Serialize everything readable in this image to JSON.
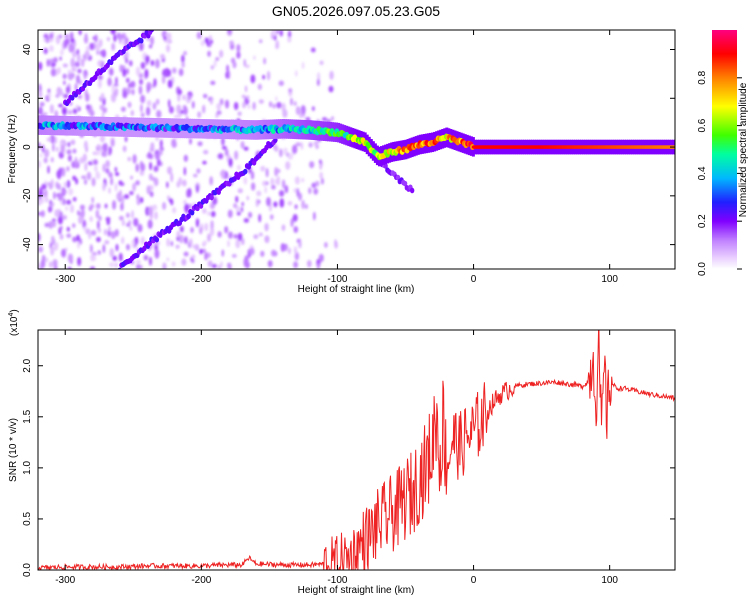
{
  "title": "GN05.2026.097.05.23.G05",
  "chart_data": [
    {
      "type": "heatmap",
      "xlabel": "Height of straight line (km)",
      "ylabel": "Frequency (Hz)",
      "xlim": [
        -320,
        148
      ],
      "ylim": [
        -50,
        48
      ],
      "xticks": [
        -300,
        -200,
        -100,
        0,
        100
      ],
      "yticks": [
        -40,
        -20,
        0,
        20,
        40
      ],
      "colorbar": {
        "label": "Normalized spectral amplitude",
        "range": [
          0,
          1
        ],
        "ticks": [
          0.0,
          0.2,
          0.4,
          0.6,
          0.8
        ],
        "colors": [
          "#ffffff",
          "#d9b3ff",
          "#b266ff",
          "#7a00ff",
          "#2020ff",
          "#00c8ff",
          "#00ff80",
          "#60ff00",
          "#ffff00",
          "#ff8000",
          "#ff0000",
          "#ff0080"
        ]
      },
      "features": {
        "main_tone": {
          "x": [
            -318,
            -280,
            -240,
            -200,
            -160,
            -140,
            -120,
            -100,
            -90,
            -80,
            -70,
            -60,
            -50,
            -40,
            -30,
            -20,
            -10,
            0,
            50,
            100,
            148
          ],
          "y": [
            9,
            8.5,
            8,
            7.5,
            7,
            7.5,
            7,
            6,
            4,
            2,
            -4,
            -2,
            -1,
            1,
            2,
            4,
            2,
            0,
            0,
            0,
            0
          ],
          "amplitude": [
            0.35,
            0.3,
            0.3,
            0.3,
            0.35,
            0.4,
            0.45,
            0.5,
            0.55,
            0.6,
            0.6,
            0.7,
            0.75,
            0.8,
            0.85,
            0.7,
            0.8,
            0.9,
            0.9,
            0.85,
            0.8
          ]
        },
        "branches": [
          {
            "x": [
              -300,
              -260,
              -235
            ],
            "y": [
              18,
              38,
              48
            ],
            "amplitude": 0.18
          },
          {
            "x": [
              -145,
              -165,
              -185,
              -210,
              -240,
              -260
            ],
            "y": [
              4,
              -8,
              -17,
              -28,
              -40,
              -50
            ],
            "amplitude": 0.18
          },
          {
            "x": [
              -75,
              -65,
              -55,
              -45
            ],
            "y": [
              -2,
              -8,
              -13,
              -18
            ],
            "amplitude": 0.15
          }
        ]
      }
    },
    {
      "type": "line",
      "xlabel": "Height of straight line (km)",
      "ylabel": "SNR (10 * v/v)",
      "y_multiplier": "(x10",
      "y_multiplier_exp": "4",
      "y_multiplier_close": ")",
      "xlim": [
        -320,
        148
      ],
      "ylim": [
        0,
        2.35
      ],
      "xticks": [
        -300,
        -200,
        -100,
        0,
        100
      ],
      "yticks": [
        0.0,
        0.5,
        1.0,
        1.5,
        2.0
      ],
      "color": "#ee2222",
      "series": [
        {
          "x": [
            -320,
            -300,
            -280,
            -260,
            -240,
            -220,
            -200,
            -180,
            -170,
            -165,
            -160,
            -140,
            -120,
            -110,
            -100,
            -90,
            -85,
            -80,
            -75,
            -70,
            -65,
            -60,
            -55,
            -50,
            -45,
            -40,
            -35,
            -30,
            -28,
            -25,
            -22,
            -20,
            -15,
            -10,
            -5,
            0,
            5,
            10,
            15,
            20,
            25,
            30,
            40,
            50,
            60,
            70,
            80,
            85,
            88,
            90,
            92,
            94,
            96,
            98,
            100,
            105,
            110,
            120,
            130,
            140,
            148
          ],
          "y": [
            0.02,
            0.03,
            0.03,
            0.03,
            0.04,
            0.04,
            0.04,
            0.05,
            0.05,
            0.12,
            0.06,
            0.05,
            0.05,
            0.06,
            0.07,
            0.12,
            0.2,
            0.3,
            0.35,
            0.45,
            0.5,
            0.55,
            0.6,
            0.7,
            0.75,
            0.9,
            1.0,
            1.2,
            1.6,
            1.1,
            1.5,
            1.0,
            1.3,
            1.2,
            1.3,
            1.35,
            1.45,
            1.55,
            1.65,
            1.72,
            1.76,
            1.8,
            1.82,
            1.83,
            1.84,
            1.82,
            1.8,
            1.85,
            2.1,
            1.6,
            2.2,
            1.3,
            2.0,
            1.5,
            1.85,
            1.78,
            1.78,
            1.75,
            1.72,
            1.7,
            1.68
          ]
        }
      ]
    }
  ]
}
